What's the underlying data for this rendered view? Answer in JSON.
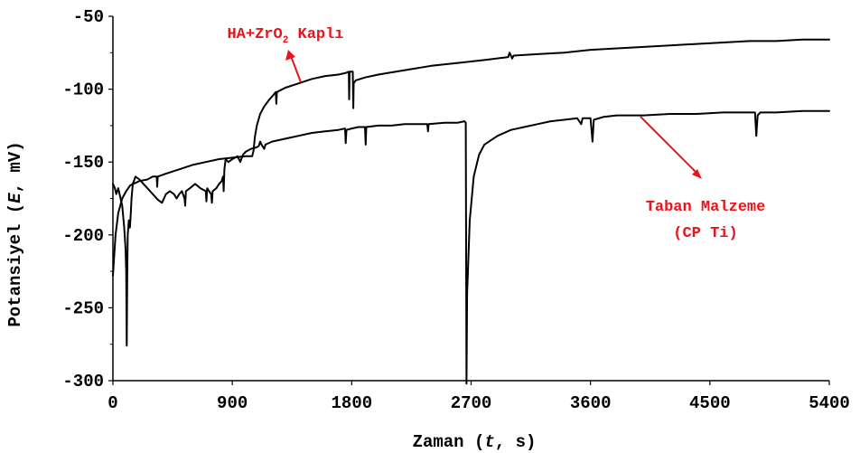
{
  "chart_data": {
    "type": "line",
    "xlabel_parts": [
      "Zaman (",
      "t",
      ", s)"
    ],
    "ylabel_parts": [
      "Potansiyel (",
      "E",
      ", mV)"
    ],
    "xlim": [
      0,
      5400
    ],
    "ylim": [
      -300,
      -50
    ],
    "xticks": [
      0,
      900,
      1800,
      2700,
      3600,
      4500,
      5400
    ],
    "yticks": [
      -50,
      -100,
      -150,
      -200,
      -250,
      -300
    ],
    "grid": false,
    "annotation_color": "#e8141b",
    "line_color": "#000000",
    "series": [
      {
        "name": "HA+ZrO2 Kaplı",
        "points": [
          [
            0,
            -228
          ],
          [
            20,
            -200
          ],
          [
            40,
            -185
          ],
          [
            70,
            -175
          ],
          [
            100,
            -170
          ],
          [
            130,
            -166
          ],
          [
            200,
            -163
          ],
          [
            260,
            -162
          ],
          [
            300,
            -160
          ],
          [
            330,
            -160
          ],
          [
            334,
            -167
          ],
          [
            338,
            -160
          ],
          [
            400,
            -158
          ],
          [
            500,
            -155
          ],
          [
            600,
            -152
          ],
          [
            700,
            -150
          ],
          [
            800,
            -148
          ],
          [
            900,
            -147
          ],
          [
            1000,
            -146
          ],
          [
            1050,
            -146
          ],
          [
            1060,
            -142
          ],
          [
            1070,
            -133
          ],
          [
            1085,
            -125
          ],
          [
            1110,
            -117
          ],
          [
            1140,
            -112
          ],
          [
            1180,
            -107
          ],
          [
            1210,
            -104
          ],
          [
            1228,
            -102
          ],
          [
            1232,
            -110
          ],
          [
            1236,
            -102
          ],
          [
            1300,
            -99
          ],
          [
            1400,
            -96
          ],
          [
            1500,
            -93
          ],
          [
            1600,
            -91
          ],
          [
            1700,
            -90
          ],
          [
            1750,
            -89
          ],
          [
            1778,
            -88
          ],
          [
            1781,
            -107
          ],
          [
            1784,
            -88
          ],
          [
            1800,
            -88
          ],
          [
            1808,
            -88
          ],
          [
            1812,
            -113
          ],
          [
            1815,
            -96
          ],
          [
            1830,
            -94
          ],
          [
            1900,
            -92
          ],
          [
            2000,
            -90
          ],
          [
            2200,
            -87
          ],
          [
            2400,
            -84
          ],
          [
            2600,
            -82
          ],
          [
            2800,
            -80
          ],
          [
            2980,
            -78
          ],
          [
            2990,
            -75
          ],
          [
            3000,
            -77
          ],
          [
            3010,
            -79
          ],
          [
            3020,
            -77
          ],
          [
            3200,
            -76
          ],
          [
            3400,
            -75
          ],
          [
            3600,
            -73
          ],
          [
            3800,
            -72
          ],
          [
            4000,
            -71
          ],
          [
            4200,
            -70
          ],
          [
            4400,
            -69
          ],
          [
            4600,
            -68
          ],
          [
            4800,
            -67
          ],
          [
            5000,
            -67
          ],
          [
            5200,
            -66
          ],
          [
            5400,
            -66
          ]
        ]
      },
      {
        "name": "Taban Malzeme (CP Ti)",
        "points": [
          [
            0,
            -165
          ],
          [
            15,
            -168
          ],
          [
            25,
            -172
          ],
          [
            40,
            -168
          ],
          [
            55,
            -174
          ],
          [
            70,
            -180
          ],
          [
            85,
            -195
          ],
          [
            95,
            -210
          ],
          [
            100,
            -225
          ],
          [
            104,
            -276
          ],
          [
            108,
            -225
          ],
          [
            112,
            -200
          ],
          [
            120,
            -190
          ],
          [
            128,
            -195
          ],
          [
            135,
            -185
          ],
          [
            140,
            -175
          ],
          [
            150,
            -165
          ],
          [
            170,
            -160
          ],
          [
            200,
            -162
          ],
          [
            230,
            -165
          ],
          [
            260,
            -168
          ],
          [
            300,
            -172
          ],
          [
            340,
            -176
          ],
          [
            370,
            -178
          ],
          [
            400,
            -172
          ],
          [
            430,
            -170
          ],
          [
            460,
            -172
          ],
          [
            480,
            -175
          ],
          [
            500,
            -172
          ],
          [
            520,
            -170
          ],
          [
            540,
            -175
          ],
          [
            545,
            -180
          ],
          [
            550,
            -170
          ],
          [
            580,
            -168
          ],
          [
            620,
            -165
          ],
          [
            660,
            -168
          ],
          [
            700,
            -170
          ],
          [
            705,
            -177
          ],
          [
            710,
            -168
          ],
          [
            740,
            -172
          ],
          [
            746,
            -178
          ],
          [
            752,
            -170
          ],
          [
            780,
            -168
          ],
          [
            800,
            -165
          ],
          [
            820,
            -163
          ],
          [
            830,
            -160
          ],
          [
            835,
            -170
          ],
          [
            840,
            -155
          ],
          [
            850,
            -148
          ],
          [
            870,
            -150
          ],
          [
            900,
            -148
          ],
          [
            940,
            -146
          ],
          [
            960,
            -150
          ],
          [
            980,
            -145
          ],
          [
            1000,
            -143
          ],
          [
            1040,
            -141
          ],
          [
            1080,
            -140
          ],
          [
            1100,
            -139
          ],
          [
            1110,
            -136
          ],
          [
            1120,
            -138
          ],
          [
            1140,
            -141
          ],
          [
            1150,
            -138
          ],
          [
            1200,
            -136
          ],
          [
            1300,
            -134
          ],
          [
            1400,
            -132
          ],
          [
            1500,
            -130
          ],
          [
            1600,
            -129
          ],
          [
            1700,
            -128
          ],
          [
            1750,
            -127
          ],
          [
            1755,
            -137
          ],
          [
            1760,
            -128
          ],
          [
            1800,
            -127
          ],
          [
            1850,
            -126
          ],
          [
            1900,
            -126
          ],
          [
            1905,
            -138
          ],
          [
            1910,
            -126
          ],
          [
            2000,
            -125
          ],
          [
            2100,
            -125
          ],
          [
            2200,
            -124
          ],
          [
            2300,
            -124
          ],
          [
            2370,
            -124
          ],
          [
            2375,
            -129
          ],
          [
            2380,
            -124
          ],
          [
            2500,
            -123
          ],
          [
            2600,
            -123
          ],
          [
            2650,
            -122
          ],
          [
            2660,
            -123
          ],
          [
            2665,
            -302
          ],
          [
            2670,
            -240
          ],
          [
            2690,
            -190
          ],
          [
            2720,
            -160
          ],
          [
            2760,
            -145
          ],
          [
            2800,
            -138
          ],
          [
            2900,
            -132
          ],
          [
            3000,
            -128
          ],
          [
            3100,
            -126
          ],
          [
            3200,
            -124
          ],
          [
            3300,
            -122
          ],
          [
            3400,
            -121
          ],
          [
            3500,
            -120
          ],
          [
            3530,
            -124
          ],
          [
            3540,
            -120
          ],
          [
            3580,
            -120
          ],
          [
            3600,
            -120
          ],
          [
            3615,
            -136
          ],
          [
            3625,
            -121
          ],
          [
            3700,
            -119
          ],
          [
            3800,
            -118
          ],
          [
            3900,
            -118
          ],
          [
            4000,
            -118
          ],
          [
            4200,
            -117
          ],
          [
            4400,
            -117
          ],
          [
            4600,
            -116
          ],
          [
            4800,
            -116
          ],
          [
            4840,
            -116
          ],
          [
            4850,
            -132
          ],
          [
            4860,
            -118
          ],
          [
            4880,
            -116
          ],
          [
            5000,
            -116
          ],
          [
            5200,
            -115
          ],
          [
            5400,
            -115
          ]
        ]
      }
    ],
    "annotations": [
      {
        "series_index": 0,
        "parts": [
          "HA+ZrO",
          "2",
          " Kaplı"
        ]
      },
      {
        "series_index": 1,
        "lines": [
          "Taban Malzeme",
          "(CP Ti)"
        ]
      }
    ]
  }
}
